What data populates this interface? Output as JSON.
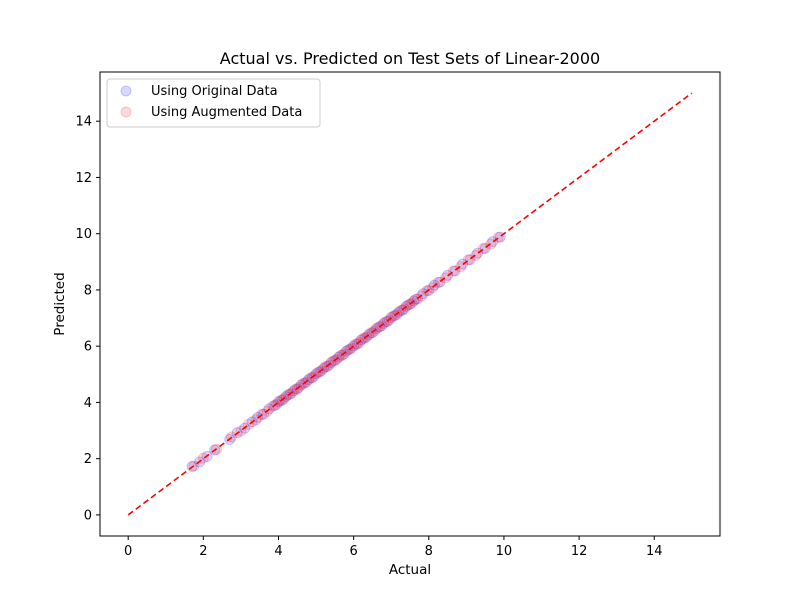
{
  "chart_data": {
    "type": "scatter",
    "title": "Actual vs. Predicted on Test Sets of Linear-2000",
    "xlabel": "Actual",
    "ylabel": "Predicted",
    "xlim": [
      -0.75,
      15.75
    ],
    "ylim": [
      -0.75,
      15.75
    ],
    "xticks": [
      0,
      2,
      4,
      6,
      8,
      10,
      12,
      14
    ],
    "yticks": [
      0,
      2,
      4,
      6,
      8,
      10,
      12,
      14
    ],
    "grid": false,
    "legend_position": "upper-left",
    "reference_line": {
      "name": "y = x",
      "from": [
        0,
        0
      ],
      "to": [
        15,
        15
      ],
      "color": "#ff0000",
      "style": "dashed"
    },
    "series": [
      {
        "name": "Using Original Data",
        "color": "#0000ff",
        "alpha": 0.15,
        "points": [
          [
            1.7,
            1.72
          ],
          [
            1.9,
            1.88
          ],
          [
            2.1,
            2.08
          ],
          [
            2.3,
            2.31
          ],
          [
            2.7,
            2.68
          ],
          [
            2.9,
            2.92
          ],
          [
            3.1,
            3.08
          ],
          [
            3.3,
            3.31
          ],
          [
            3.45,
            3.47
          ],
          [
            3.6,
            3.58
          ],
          [
            3.75,
            3.77
          ],
          [
            3.9,
            3.89
          ],
          [
            4.0,
            4.02
          ],
          [
            4.1,
            4.08
          ],
          [
            4.2,
            4.21
          ],
          [
            4.3,
            4.29
          ],
          [
            4.4,
            4.41
          ],
          [
            4.5,
            4.48
          ],
          [
            4.6,
            4.62
          ],
          [
            4.7,
            4.69
          ],
          [
            4.8,
            4.81
          ],
          [
            4.9,
            4.88
          ],
          [
            5.0,
            5.02
          ],
          [
            5.1,
            5.09
          ],
          [
            5.2,
            5.21
          ],
          [
            5.3,
            5.28
          ],
          [
            5.4,
            5.42
          ],
          [
            5.5,
            5.49
          ],
          [
            5.6,
            5.61
          ],
          [
            5.7,
            5.68
          ],
          [
            5.8,
            5.82
          ],
          [
            5.9,
            5.89
          ],
          [
            6.0,
            6.01
          ],
          [
            6.1,
            6.08
          ],
          [
            6.2,
            6.22
          ],
          [
            6.3,
            6.29
          ],
          [
            6.4,
            6.41
          ],
          [
            6.5,
            6.48
          ],
          [
            6.6,
            6.62
          ],
          [
            6.7,
            6.69
          ],
          [
            6.8,
            6.81
          ],
          [
            6.9,
            6.88
          ],
          [
            7.0,
            7.02
          ],
          [
            7.1,
            7.09
          ],
          [
            7.2,
            7.21
          ],
          [
            7.3,
            7.28
          ],
          [
            7.4,
            7.42
          ],
          [
            7.5,
            7.49
          ],
          [
            7.6,
            7.61
          ],
          [
            7.7,
            7.68
          ],
          [
            7.85,
            7.87
          ],
          [
            8.0,
            7.98
          ],
          [
            8.15,
            8.17
          ],
          [
            8.3,
            8.28
          ],
          [
            8.5,
            8.52
          ],
          [
            8.7,
            8.68
          ],
          [
            8.9,
            8.92
          ],
          [
            9.1,
            9.08
          ],
          [
            9.3,
            9.31
          ],
          [
            9.5,
            9.48
          ],
          [
            9.7,
            9.72
          ],
          [
            9.9,
            9.88
          ]
        ]
      },
      {
        "name": "Using Augmented Data",
        "color": "#ff0000",
        "alpha": 0.15,
        "points": [
          [
            1.75,
            1.74
          ],
          [
            2.0,
            2.02
          ],
          [
            2.35,
            2.33
          ],
          [
            2.75,
            2.77
          ],
          [
            3.0,
            2.98
          ],
          [
            3.2,
            3.22
          ],
          [
            3.4,
            3.38
          ],
          [
            3.55,
            3.57
          ],
          [
            3.7,
            3.68
          ],
          [
            3.85,
            3.87
          ],
          [
            3.95,
            3.93
          ],
          [
            4.05,
            4.07
          ],
          [
            4.15,
            4.13
          ],
          [
            4.25,
            4.27
          ],
          [
            4.35,
            4.33
          ],
          [
            4.45,
            4.47
          ],
          [
            4.55,
            4.53
          ],
          [
            4.65,
            4.67
          ],
          [
            4.75,
            4.73
          ],
          [
            4.85,
            4.87
          ],
          [
            4.95,
            4.93
          ],
          [
            5.05,
            5.07
          ],
          [
            5.15,
            5.13
          ],
          [
            5.25,
            5.27
          ],
          [
            5.35,
            5.33
          ],
          [
            5.45,
            5.47
          ],
          [
            5.55,
            5.53
          ],
          [
            5.65,
            5.67
          ],
          [
            5.75,
            5.73
          ],
          [
            5.85,
            5.87
          ],
          [
            5.95,
            5.93
          ],
          [
            6.05,
            6.07
          ],
          [
            6.15,
            6.13
          ],
          [
            6.25,
            6.27
          ],
          [
            6.35,
            6.33
          ],
          [
            6.45,
            6.47
          ],
          [
            6.55,
            6.53
          ],
          [
            6.65,
            6.67
          ],
          [
            6.75,
            6.73
          ],
          [
            6.85,
            6.87
          ],
          [
            6.95,
            6.93
          ],
          [
            7.05,
            7.07
          ],
          [
            7.15,
            7.13
          ],
          [
            7.25,
            7.27
          ],
          [
            7.35,
            7.33
          ],
          [
            7.45,
            7.47
          ],
          [
            7.55,
            7.53
          ],
          [
            7.65,
            7.67
          ],
          [
            7.8,
            7.78
          ],
          [
            7.95,
            7.97
          ],
          [
            8.1,
            8.08
          ],
          [
            8.25,
            8.27
          ],
          [
            8.45,
            8.43
          ],
          [
            8.65,
            8.67
          ],
          [
            8.85,
            8.83
          ],
          [
            9.05,
            9.07
          ],
          [
            9.25,
            9.23
          ],
          [
            9.45,
            9.47
          ],
          [
            9.65,
            9.63
          ],
          [
            9.85,
            9.87
          ]
        ]
      }
    ]
  }
}
